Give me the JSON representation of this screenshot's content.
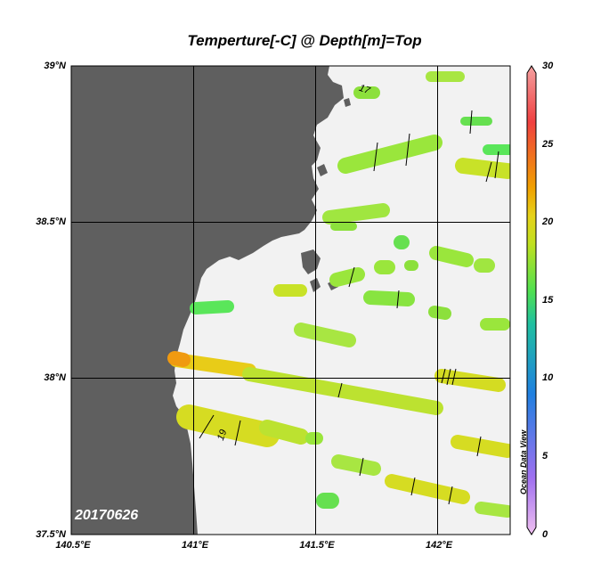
{
  "title": "Temperture[-C] @ Depth[m]=Top",
  "date_label": "20170626",
  "watermark": "Ocean Data View",
  "axes": {
    "y_ticks": [
      "39°N",
      "38.5°N",
      "38°N",
      "37.5°N"
    ],
    "x_ticks": [
      "140.5°E",
      "141°E",
      "141.5°E",
      "142°E"
    ]
  },
  "colorbar": {
    "ticks": [
      "30",
      "25",
      "20",
      "15",
      "10",
      "5",
      "0"
    ],
    "range": [
      0,
      30
    ]
  },
  "colors": {
    "land": "#5f5f5f",
    "sea": "#f2f2f2",
    "warm": "#e6d21a",
    "mid": "#b4e632",
    "cool": "#5ae65a",
    "hot": "#f0a000"
  },
  "contour_labels": [
    "17",
    "19"
  ],
  "chart_data": {
    "type": "heatmap",
    "title": "Temperture[-C] @ Depth[m]=Top",
    "xlabel": "",
    "ylabel": "",
    "xlim": [
      140.5,
      142.3
    ],
    "ylim": [
      37.5,
      39.0
    ],
    "color_range": [
      0,
      30
    ],
    "series": []
  }
}
